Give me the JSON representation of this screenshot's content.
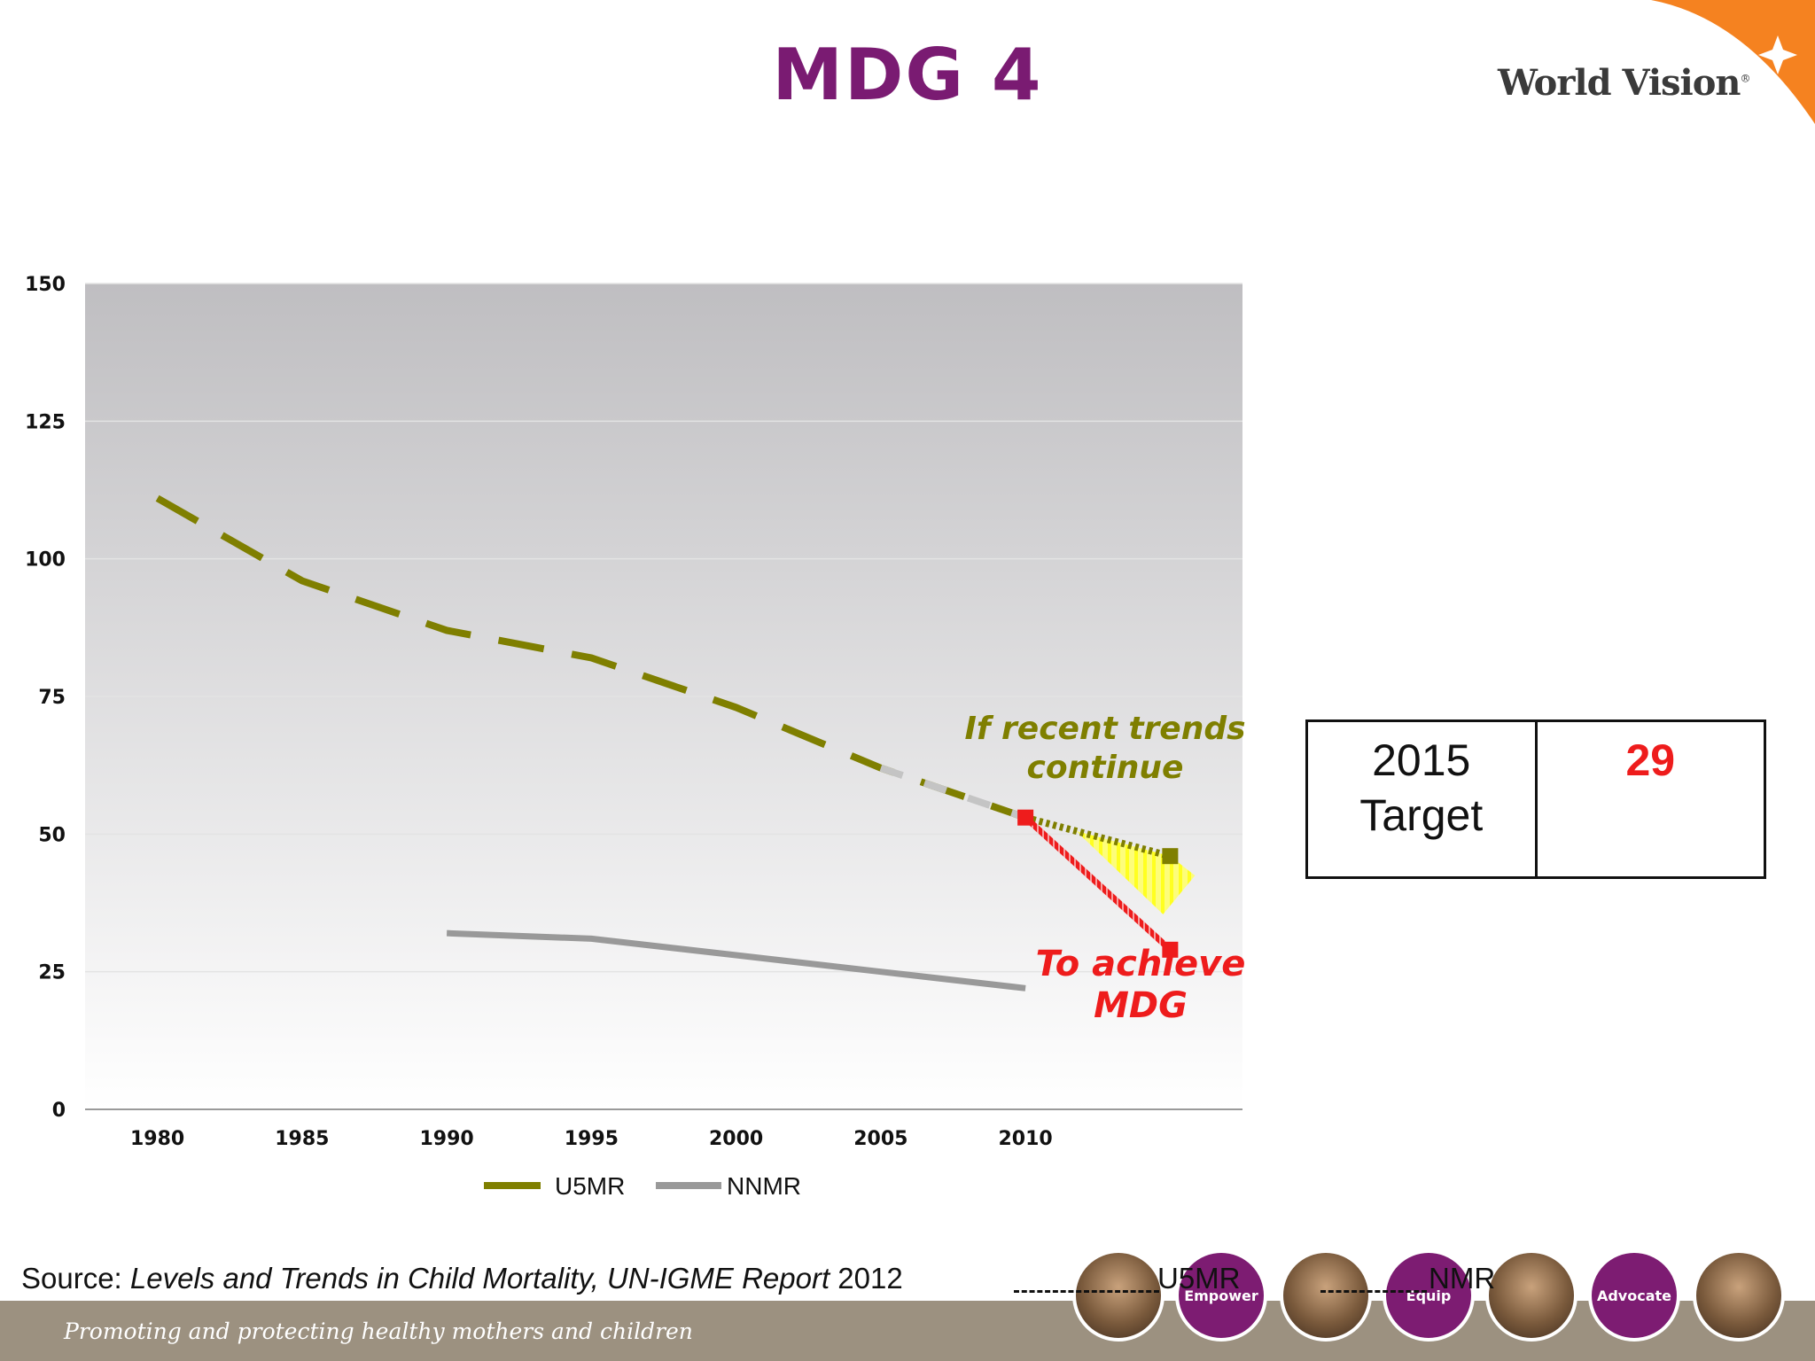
{
  "slide": {
    "title": "MDG 4",
    "logo_text": "World Vision",
    "logo_mark": "®",
    "source_prefix": "Source: ",
    "source_italic": "Levels and Trends in Child Mortality, UN-IGME Report",
    "source_suffix": " 2012",
    "tagline": "Promoting and protecting healthy mothers and children",
    "circles": [
      {
        "type": "photo"
      },
      {
        "type": "label",
        "label": "Empower"
      },
      {
        "type": "photo"
      },
      {
        "type": "label",
        "label": "Equip"
      },
      {
        "type": "photo"
      },
      {
        "type": "label",
        "label": "Advocate"
      },
      {
        "type": "photo"
      }
    ],
    "overlay_legend": [
      "U5MR",
      "NMR"
    ],
    "colors": {
      "title": "#7a1b72",
      "u5mr": "#7f7f00",
      "nnmr": "#999999",
      "target": "#ee1c1c",
      "corner": "#f58220",
      "footer": "#9c9180"
    }
  },
  "target_table": {
    "label_line1": "2015",
    "label_line2": "Target",
    "value": "29"
  },
  "chart_data": {
    "type": "line",
    "ylim": [
      0,
      150
    ],
    "yticks": [
      "0",
      "25",
      "50",
      "75",
      "100",
      "125",
      "150"
    ],
    "xlim": [
      1977.5,
      2017.5
    ],
    "xticks": [
      "1980",
      "1985",
      "1990",
      "1995",
      "2000",
      "2005",
      "2010"
    ],
    "series": [
      {
        "name": "U5MR",
        "x": [
          1980,
          1985,
          1990,
          1995,
          2000,
          2005,
          2010
        ],
        "y": [
          111,
          96,
          87,
          82,
          73,
          62,
          53
        ]
      },
      {
        "name": "NNMR",
        "x": [
          1990,
          1995,
          2000,
          2005,
          2010
        ],
        "y": [
          32,
          31,
          28,
          25,
          22
        ]
      }
    ],
    "projections": [
      {
        "from": [
          2010,
          53
        ],
        "to": [
          2015,
          46
        ]
      },
      {
        "from": [
          2010,
          53
        ],
        "to": [
          2015,
          29
        ]
      }
    ],
    "annotations": {
      "trend_line1": "If recent trends",
      "trend_line2": "continue",
      "mdg_line1": "To achieve",
      "mdg_line2": "MDG"
    },
    "legend_position": "bottom"
  }
}
